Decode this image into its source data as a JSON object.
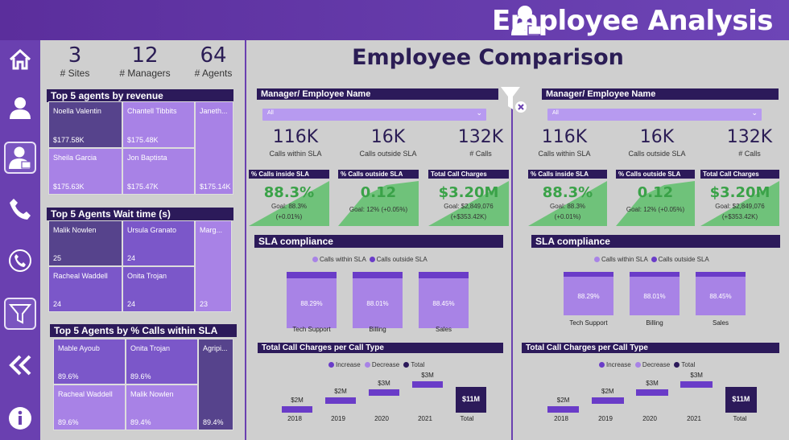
{
  "header": {
    "title": "Employee Analysis"
  },
  "nav": [
    {
      "name": "home-icon"
    },
    {
      "name": "user-icon"
    },
    {
      "name": "employee-icon",
      "active": true
    },
    {
      "name": "phone-icon"
    },
    {
      "name": "call-icon"
    },
    {
      "name": "filter-icon"
    },
    {
      "name": "collapse-icon"
    },
    {
      "name": "info-icon"
    }
  ],
  "kpis": [
    {
      "value": "3",
      "label": "# Sites"
    },
    {
      "value": "12",
      "label": "# Managers"
    },
    {
      "value": "64",
      "label": "# Agents"
    }
  ],
  "revenue": {
    "title": "Top 5 agents by revenue",
    "tiles": [
      {
        "name": "Noella Valentin",
        "value": "$177.58K"
      },
      {
        "name": "Chantell Tibbits",
        "value": "$175.48K"
      },
      {
        "name": "Janeth...",
        "value": "$175.14K"
      },
      {
        "name": "Sheila Garcia",
        "value": "$175.63K"
      },
      {
        "name": "Jon Baptista",
        "value": "$175.47K"
      }
    ]
  },
  "wait": {
    "title": "Top 5 Agents Wait time (s)",
    "tiles": [
      {
        "name": "Malik Nowlen",
        "value": "25"
      },
      {
        "name": "Ursula Granato",
        "value": "24"
      },
      {
        "name": "Marg...",
        "value": "23"
      },
      {
        "name": "Racheal Waddell",
        "value": "24"
      },
      {
        "name": "Onita Trojan",
        "value": "24"
      }
    ]
  },
  "sla_agents": {
    "title": "Top 5 Agents by % Calls within SLA",
    "tiles": [
      {
        "name": "Mable Ayoub",
        "value": "89.6%"
      },
      {
        "name": "Onita Trojan",
        "value": "89.6%"
      },
      {
        "name": "Agripi...",
        "value": "89.4%"
      },
      {
        "name": "Racheal Waddell",
        "value": "89.6%"
      },
      {
        "name": "Malik Nowlen",
        "value": "89.4%"
      }
    ]
  },
  "main": {
    "title": "Employee Comparison"
  },
  "panels": [
    {
      "filter_label": "Manager/ Employee Name",
      "filter_value": "All",
      "stats": [
        {
          "value": "116K",
          "label": "Calls within SLA"
        },
        {
          "value": "16K",
          "label": "Calls outside SLA"
        },
        {
          "value": "132K",
          "label": "# Calls"
        }
      ],
      "cards": [
        {
          "title": "% Calls inside SLA",
          "value": "88.3%",
          "goal": "Goal: 88.3%",
          "delta": "(+0.01%)"
        },
        {
          "title": "% Calls outside SLA",
          "value": "0.12",
          "goal": "Goal: 12% (+0.05%)",
          "delta": ""
        },
        {
          "title": "Total Call Charges",
          "value": "$3.20M",
          "goal": "Goal: $2,849,076",
          "delta": "(+$353.42K)"
        }
      ],
      "sla_title": "SLA compliance",
      "sla_legend": [
        "Calls within SLA",
        "Calls outside SLA"
      ],
      "sla_bars": [
        {
          "pct": "88.29%",
          "label": "Tech Support",
          "within": 88.29
        },
        {
          "pct": "88.01%",
          "label": "Billing",
          "within": 88.01
        },
        {
          "pct": "88.45%",
          "label": "Sales",
          "within": 88.45
        }
      ],
      "wf_title": "Total Call Charges per Call Type",
      "wf_legend": [
        "Increase",
        "Decrease",
        "Total"
      ],
      "wf": [
        {
          "x": "2018",
          "label": "$2M"
        },
        {
          "x": "2019",
          "label": "$2M"
        },
        {
          "x": "2020",
          "label": "$3M"
        },
        {
          "x": "2021",
          "label": "$3M"
        },
        {
          "x": "Total",
          "label": "$11M"
        }
      ]
    },
    {
      "filter_label": "Manager/ Employee Name",
      "filter_value": "All",
      "stats": [
        {
          "value": "116K",
          "label": "Calls within SLA"
        },
        {
          "value": "16K",
          "label": "Calls outside SLA"
        },
        {
          "value": "132K",
          "label": "# Calls"
        }
      ],
      "cards": [
        {
          "title": "% Calls inside SLA",
          "value": "88.3%",
          "goal": "Goal: 88.3%",
          "delta": "(+0.01%)"
        },
        {
          "title": "% Calls outside SLA",
          "value": "0.12",
          "goal": "Goal: 12% (+0.05%)",
          "delta": ""
        },
        {
          "title": "Total Call Charges",
          "value": "$3.20M",
          "goal": "Goal: $2,849,076",
          "delta": "(+$353.42K)"
        }
      ],
      "sla_title": "SLA compliance",
      "sla_legend": [
        "Calls within SLA",
        "Calls outside SLA"
      ],
      "sla_bars": [
        {
          "pct": "88.29%",
          "label": "Tech Support",
          "within": 88.29
        },
        {
          "pct": "88.01%",
          "label": "Billing",
          "within": 88.01
        },
        {
          "pct": "88.45%",
          "label": "Sales",
          "within": 88.45
        }
      ],
      "wf_title": "Total Call Charges per Call Type",
      "wf_legend": [
        "Increase",
        "Decrease",
        "Total"
      ],
      "wf": [
        {
          "x": "2018",
          "label": "$2M"
        },
        {
          "x": "2019",
          "label": "$2M"
        },
        {
          "x": "2020",
          "label": "$3M"
        },
        {
          "x": "2021",
          "label": "$3M"
        },
        {
          "x": "Total",
          "label": "$11M"
        }
      ]
    }
  ],
  "colors": {
    "dark": "#2c1a5a",
    "increase": "#6a3cc8",
    "decrease": "#a883e6",
    "total": "#2c1a5a",
    "green": "#3aa248"
  }
}
